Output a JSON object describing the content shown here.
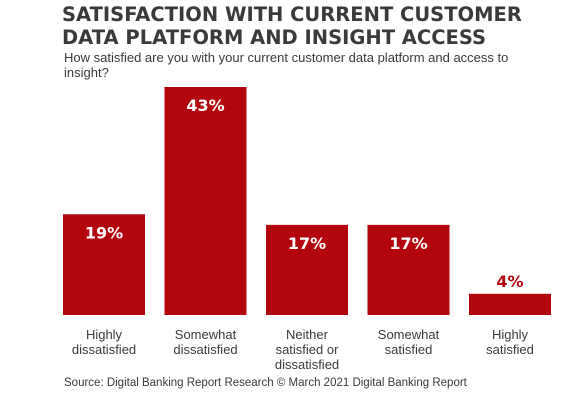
{
  "title": "SATISFACTION WITH CURRENT CUSTOMER DATA PLATFORM AND INSIGHT ACCESS",
  "subtitle": "How satisfied are you with your current customer data platform and access to insight?",
  "source": "Source: Digital Banking Report Research © March 2021 Digital Banking Report",
  "colors": {
    "bar": "#b3050d",
    "label_inside": "#ffffff",
    "label_outside": "#b3050d",
    "text": "#3a3a3a"
  },
  "chart_data": {
    "type": "bar",
    "categories": [
      [
        "Highly",
        "dissatisfied"
      ],
      [
        "Somewhat",
        "dissatisfied"
      ],
      [
        "Neither",
        "satisfied or",
        "dissatisfied"
      ],
      [
        "Somewhat",
        "satisfied"
      ],
      [
        "Highly",
        "satisfied"
      ]
    ],
    "values": [
      19,
      43,
      17,
      17,
      4
    ],
    "value_labels": [
      "19%",
      "43%",
      "17%",
      "17%",
      "4%"
    ],
    "unit": "%",
    "ylim": [
      0,
      43
    ],
    "grid": false,
    "legend": "none"
  }
}
